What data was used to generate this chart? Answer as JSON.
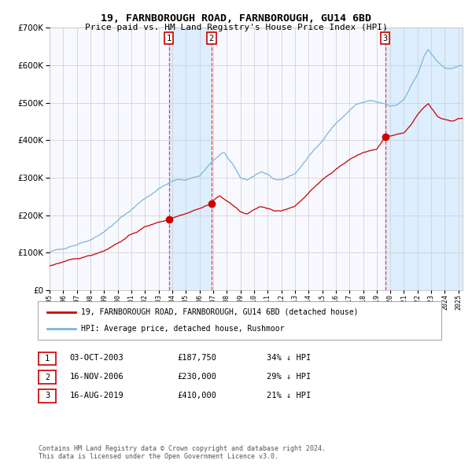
{
  "title": "19, FARNBOROUGH ROAD, FARNBOROUGH, GU14 6BD",
  "subtitle": "Price paid vs. HM Land Registry's House Price Index (HPI)",
  "footer": "Contains HM Land Registry data © Crown copyright and database right 2024.\nThis data is licensed under the Open Government Licence v3.0.",
  "legend_line1": "19, FARNBOROUGH ROAD, FARNBOROUGH, GU14 6BD (detached house)",
  "legend_line2": "HPI: Average price, detached house, Rushmoor",
  "transactions": [
    {
      "num": 1,
      "date": "03-OCT-2003",
      "price": 187750,
      "hpi_pct": "34% ↓ HPI",
      "year": 2003.75
    },
    {
      "num": 2,
      "date": "16-NOV-2006",
      "price": 230000,
      "hpi_pct": "29% ↓ HPI",
      "year": 2006.88
    },
    {
      "num": 3,
      "date": "16-AUG-2019",
      "price": 410000,
      "hpi_pct": "21% ↓ HPI",
      "year": 2019.62
    }
  ],
  "hpi_color": "#7ab8d9",
  "property_color": "#cc0000",
  "marker_color": "#cc0000",
  "vline_color": "#dd2222",
  "shade_color": "#ddeeff",
  "background_color": "#f8f8ff",
  "grid_color": "#cccccc",
  "ylim": [
    0,
    700000
  ],
  "yticks": [
    0,
    100000,
    200000,
    300000,
    400000,
    500000,
    600000,
    700000
  ],
  "xlim_start": 1995.0,
  "xlim_end": 2025.3
}
